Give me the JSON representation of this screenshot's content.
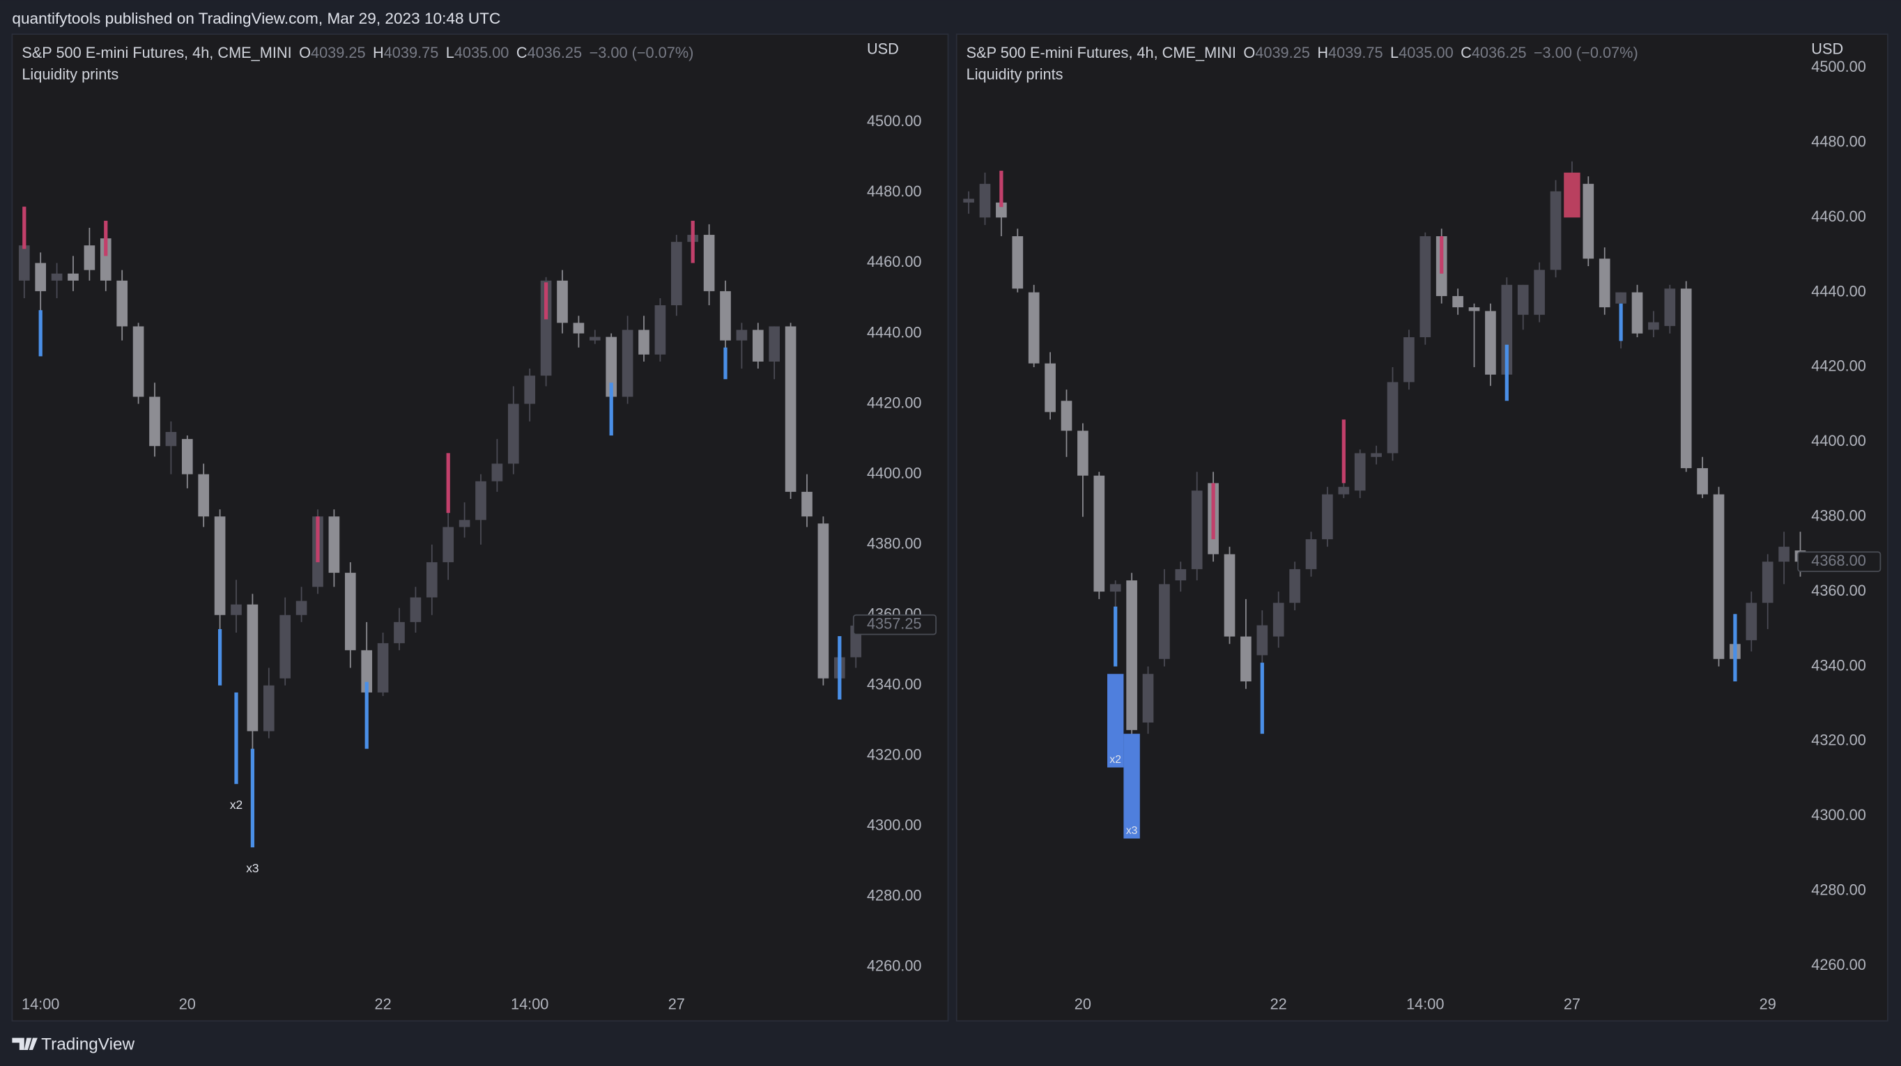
{
  "header": {
    "publisher": "quantifytools published on TradingView.com, Mar 29, 2023 10:48 UTC",
    "footer": "TradingView"
  },
  "chart_data": [
    {
      "type": "candlestick",
      "title": "S&P 500 E-mini Futures, 4h, CME_MINI",
      "ohlc_text": [
        "O",
        "4039.25",
        "H",
        "4039.75",
        "L",
        "4035.00",
        "C",
        "4036.25",
        "−3.00 (−0.07%)"
      ],
      "subtitle": "Liquidity prints",
      "currency": "USD",
      "up_color": "#4c4c56",
      "down_color": "#8d8d93",
      "categories": [
        null,
        "14:00",
        null,
        null,
        null,
        null,
        null,
        null,
        null,
        null,
        "20",
        null,
        null,
        null,
        null,
        null,
        null,
        null,
        null,
        null,
        null,
        null,
        "22",
        null,
        null,
        null,
        null,
        null,
        null,
        null,
        null,
        "14:00",
        null,
        null,
        null,
        null,
        null,
        null,
        null,
        null,
        "27",
        null,
        null,
        null,
        null,
        null,
        null,
        null,
        null,
        null,
        null,
        null
      ],
      "open": [
        4455,
        4460,
        4455,
        4457,
        4465,
        4467,
        4455,
        4442,
        4422,
        4408,
        4410,
        4400,
        4388,
        4360,
        4363,
        4327,
        4342,
        4360,
        4368,
        4388,
        4372,
        4350,
        4338,
        4352,
        4358,
        4365,
        4375,
        4385,
        4387,
        4398,
        4403,
        4420,
        4428,
        4455,
        4443,
        4438,
        4439,
        4422,
        4441,
        4434,
        4448,
        4466,
        4468,
        4452,
        4438,
        4441,
        4432,
        4442,
        4395,
        4386,
        4342,
        4348
      ],
      "high": [
        4476,
        4463,
        4460,
        4462,
        4470,
        4470,
        4458,
        4443,
        4426,
        4415,
        4411,
        4403,
        4390,
        4370,
        4366,
        4345,
        4365,
        4368,
        4390,
        4390,
        4375,
        4358,
        4355,
        4362,
        4368,
        4380,
        4395,
        4392,
        4400,
        4410,
        4425,
        4430,
        4456,
        4458,
        4445,
        4441,
        4440,
        4445,
        4445,
        4450,
        4468,
        4470,
        4471,
        4455,
        4443,
        4443,
        4442,
        4443,
        4400,
        4388,
        4352,
        4360
      ],
      "low": [
        4450,
        4440,
        4450,
        4452,
        4455,
        4452,
        4438,
        4420,
        4405,
        4400,
        4396,
        4385,
        4355,
        4355,
        4320,
        4325,
        4340,
        4358,
        4366,
        4368,
        4345,
        4340,
        4337,
        4350,
        4355,
        4360,
        4370,
        4382,
        4380,
        4395,
        4400,
        4415,
        4425,
        4440,
        4436,
        4437,
        4420,
        4420,
        4432,
        4432,
        4445,
        4462,
        4448,
        4435,
        4430,
        4430,
        4427,
        4393,
        4385,
        4340,
        4338,
        4345
      ],
      "close": [
        4465,
        4452,
        4457,
        4455,
        4458,
        4455,
        4442,
        4422,
        4408,
        4412,
        4400,
        4388,
        4360,
        4363,
        4327,
        4340,
        4360,
        4364,
        4388,
        4372,
        4350,
        4338,
        4352,
        4358,
        4365,
        4375,
        4385,
        4387,
        4398,
        4403,
        4420,
        4428,
        4455,
        4443,
        4440,
        4439,
        4422,
        4441,
        4434,
        4448,
        4466,
        4468,
        4452,
        4438,
        4441,
        4432,
        4442,
        4395,
        4388,
        4342,
        4348,
        4357
      ],
      "prints": [
        {
          "x": 0,
          "high": 4476,
          "low": 4464,
          "color": "#c2406b",
          "box": false
        },
        {
          "x": 1,
          "high": 4446.6,
          "low": 4433.5,
          "color": "#4a8fe7",
          "box": false
        },
        {
          "x": 5,
          "high": 4472,
          "low": 4462,
          "color": "#c2406b",
          "box": false
        },
        {
          "x": 12,
          "high": 4356,
          "low": 4340,
          "color": "#4a8fe7",
          "box": false
        },
        {
          "x": 13,
          "high": 4338,
          "low": 4312,
          "color": "#4a8fe7",
          "box": false,
          "label": "x2"
        },
        {
          "x": 14,
          "high": 4322,
          "low": 4294,
          "color": "#4a8fe7",
          "box": false,
          "label": "x3"
        },
        {
          "x": 18,
          "high": 4388,
          "low": 4375,
          "color": "#c2406b",
          "box": false
        },
        {
          "x": 21,
          "high": 4341,
          "low": 4322,
          "color": "#4a8fe7",
          "box": false
        },
        {
          "x": 26,
          "high": 4406,
          "low": 4389,
          "color": "#c2406b",
          "box": false
        },
        {
          "x": 32,
          "high": 4454.5,
          "low": 4444,
          "color": "#c2406b",
          "box": false
        },
        {
          "x": 36,
          "high": 4426,
          "low": 4411,
          "color": "#4a8fe7",
          "box": false
        },
        {
          "x": 41,
          "high": 4472,
          "low": 4460,
          "color": "#c2406b",
          "box": false
        },
        {
          "x": 43,
          "high": 4436,
          "low": 4427,
          "color": "#4a8fe7",
          "box": false
        },
        {
          "x": 50,
          "high": 4354,
          "low": 4336,
          "color": "#4a8fe7",
          "box": false
        }
      ],
      "ylim": [
        4254,
        4525
      ],
      "yticks": [
        {
          "value": 4260,
          "label": "4260.00"
        },
        {
          "value": 4280,
          "label": "4280.00"
        },
        {
          "value": 4300,
          "label": "4300.00"
        },
        {
          "value": 4320,
          "label": "4320.00"
        },
        {
          "value": 4340,
          "label": "4340.00"
        },
        {
          "value": 4360,
          "label": "4360.00"
        },
        {
          "value": 4380,
          "label": "4380.00"
        },
        {
          "value": 4400,
          "label": "4400.00"
        },
        {
          "value": 4420,
          "label": "4420.00"
        },
        {
          "value": 4440,
          "label": "4440.00"
        },
        {
          "value": 4460,
          "label": "4460.00"
        },
        {
          "value": 4480,
          "label": "4480.00"
        },
        {
          "value": 4500,
          "label": "4500.00"
        }
      ],
      "last_price": {
        "value": 4357.25,
        "label": "4357.25"
      }
    },
    {
      "type": "candlestick",
      "title": "S&P 500 E-mini Futures, 4h, CME_MINI",
      "ohlc_text": [
        "O",
        "4039.25",
        "H",
        "4039.75",
        "L",
        "4035.00",
        "C",
        "4036.25",
        "−3.00 (−0.07%)"
      ],
      "subtitle": "Liquidity prints",
      "currency": "USD",
      "up_color": "#4c4c56",
      "down_color": "#8d8d93",
      "categories": [
        null,
        null,
        null,
        null,
        null,
        null,
        null,
        "20",
        null,
        null,
        null,
        null,
        null,
        null,
        null,
        null,
        null,
        null,
        null,
        "22",
        null,
        null,
        null,
        null,
        null,
        null,
        null,
        null,
        "14:00",
        null,
        null,
        null,
        null,
        null,
        null,
        null,
        null,
        "27",
        null,
        null,
        null,
        null,
        null,
        null,
        null,
        null,
        null,
        null,
        null,
        "29",
        null,
        null
      ],
      "open": [
        4464,
        4460,
        4464,
        4455,
        4440,
        4421,
        4411,
        4403,
        4391,
        4360,
        4363,
        4325,
        4342,
        4363,
        4366,
        4389,
        4370,
        4348,
        4343,
        4348,
        4357,
        4366,
        4374,
        4386,
        4387,
        4396,
        4397,
        4416,
        4428,
        4455,
        4439,
        4436,
        4435,
        4418,
        4434,
        4434,
        4446,
        4465,
        4469,
        4449,
        4437,
        4440,
        4430,
        4431,
        4441,
        4393,
        4386,
        4346,
        4347,
        4357,
        4368,
        4371
      ],
      "high": [
        4467,
        4472,
        4470,
        4457,
        4442,
        4424,
        4414,
        4405,
        4392,
        4363,
        4365,
        4340,
        4366,
        4368,
        4392,
        4392,
        4372,
        4358,
        4355,
        4360,
        4368,
        4376,
        4388,
        4390,
        4398,
        4399,
        4420,
        4430,
        4456,
        4457,
        4441,
        4437,
        4437,
        4444,
        4442,
        4448,
        4470,
        4475,
        4471,
        4452,
        4440,
        4442,
        4435,
        4442,
        4443,
        4396,
        4388,
        4354,
        4360,
        4370,
        4376,
        4376
      ],
      "low": [
        4461,
        4458,
        4455,
        4440,
        4420,
        4406,
        4396,
        4380,
        4358,
        4345,
        4320,
        4322,
        4340,
        4360,
        4363,
        4368,
        4346,
        4334,
        4340,
        4345,
        4355,
        4364,
        4372,
        4385,
        4385,
        4394,
        4395,
        4414,
        4426,
        4437,
        4434,
        4420,
        4415,
        4412,
        4430,
        4432,
        4444,
        4462,
        4447,
        4434,
        4425,
        4428,
        4428,
        4429,
        4392,
        4385,
        4340,
        4337,
        4344,
        4350,
        4362,
        4364
      ],
      "close": [
        4465,
        4469,
        4460,
        4441,
        4421,
        4408,
        4403,
        4391,
        4360,
        4362,
        4323,
        4338,
        4362,
        4366,
        4387,
        4370,
        4348,
        4336,
        4351,
        4357,
        4366,
        4374,
        4386,
        4388,
        4397,
        4397,
        4416,
        4428,
        4455,
        4439,
        4436,
        4435,
        4418,
        4442,
        4442,
        4446,
        4467,
        4469,
        4449,
        4436,
        4440,
        4429,
        4432,
        4441,
        4393,
        4386,
        4342,
        4342,
        4357,
        4368,
        4372,
        4368
      ],
      "prints": [
        {
          "x": 2,
          "high": 4472.5,
          "low": 4462.8,
          "color": "#c2406b",
          "box": false
        },
        {
          "x": 9,
          "high": 4356,
          "low": 4340,
          "color": "#4a8fe7",
          "box": false
        },
        {
          "x": 9,
          "high": 4338,
          "low": 4313,
          "color": "#4f7fdd",
          "box": true,
          "label": "x2"
        },
        {
          "x": 10,
          "high": 4322,
          "low": 4294,
          "color": "#4f7fdd",
          "box": true,
          "label": "x3"
        },
        {
          "x": 15,
          "high": 4389,
          "low": 4374,
          "color": "#c2406b",
          "box": false
        },
        {
          "x": 18,
          "high": 4341,
          "low": 4322,
          "color": "#4a8fe7",
          "box": false
        },
        {
          "x": 23,
          "high": 4406,
          "low": 4389,
          "color": "#c2406b",
          "box": false
        },
        {
          "x": 29,
          "high": 4455,
          "low": 4445,
          "color": "#c2406b",
          "box": false
        },
        {
          "x": 33,
          "high": 4426,
          "low": 4411,
          "color": "#4a8fe7",
          "box": false
        },
        {
          "x": 37,
          "high": 4472,
          "low": 4460,
          "color": "#b9405f",
          "box": true
        },
        {
          "x": 40,
          "high": 4437,
          "low": 4427,
          "color": "#4a8fe7",
          "box": false
        },
        {
          "x": 47,
          "high": 4354,
          "low": 4336,
          "color": "#4a8fe7",
          "box": false
        }
      ],
      "ylim": [
        4254,
        4509
      ],
      "yticks": [
        {
          "value": 4260,
          "label": "4260.00"
        },
        {
          "value": 4280,
          "label": "4280.00"
        },
        {
          "value": 4300,
          "label": "4300.00"
        },
        {
          "value": 4320,
          "label": "4320.00"
        },
        {
          "value": 4340,
          "label": "4340.00"
        },
        {
          "value": 4360,
          "label": "4360.00"
        },
        {
          "value": 4380,
          "label": "4380.00"
        },
        {
          "value": 4400,
          "label": "4400.00"
        },
        {
          "value": 4420,
          "label": "4420.00"
        },
        {
          "value": 4440,
          "label": "4440.00"
        },
        {
          "value": 4460,
          "label": "4460.00"
        },
        {
          "value": 4480,
          "label": "4480.00"
        },
        {
          "value": 4500,
          "label": "4500.00"
        }
      ],
      "last_price": {
        "value": 4368,
        "label": "4368.00"
      }
    }
  ]
}
